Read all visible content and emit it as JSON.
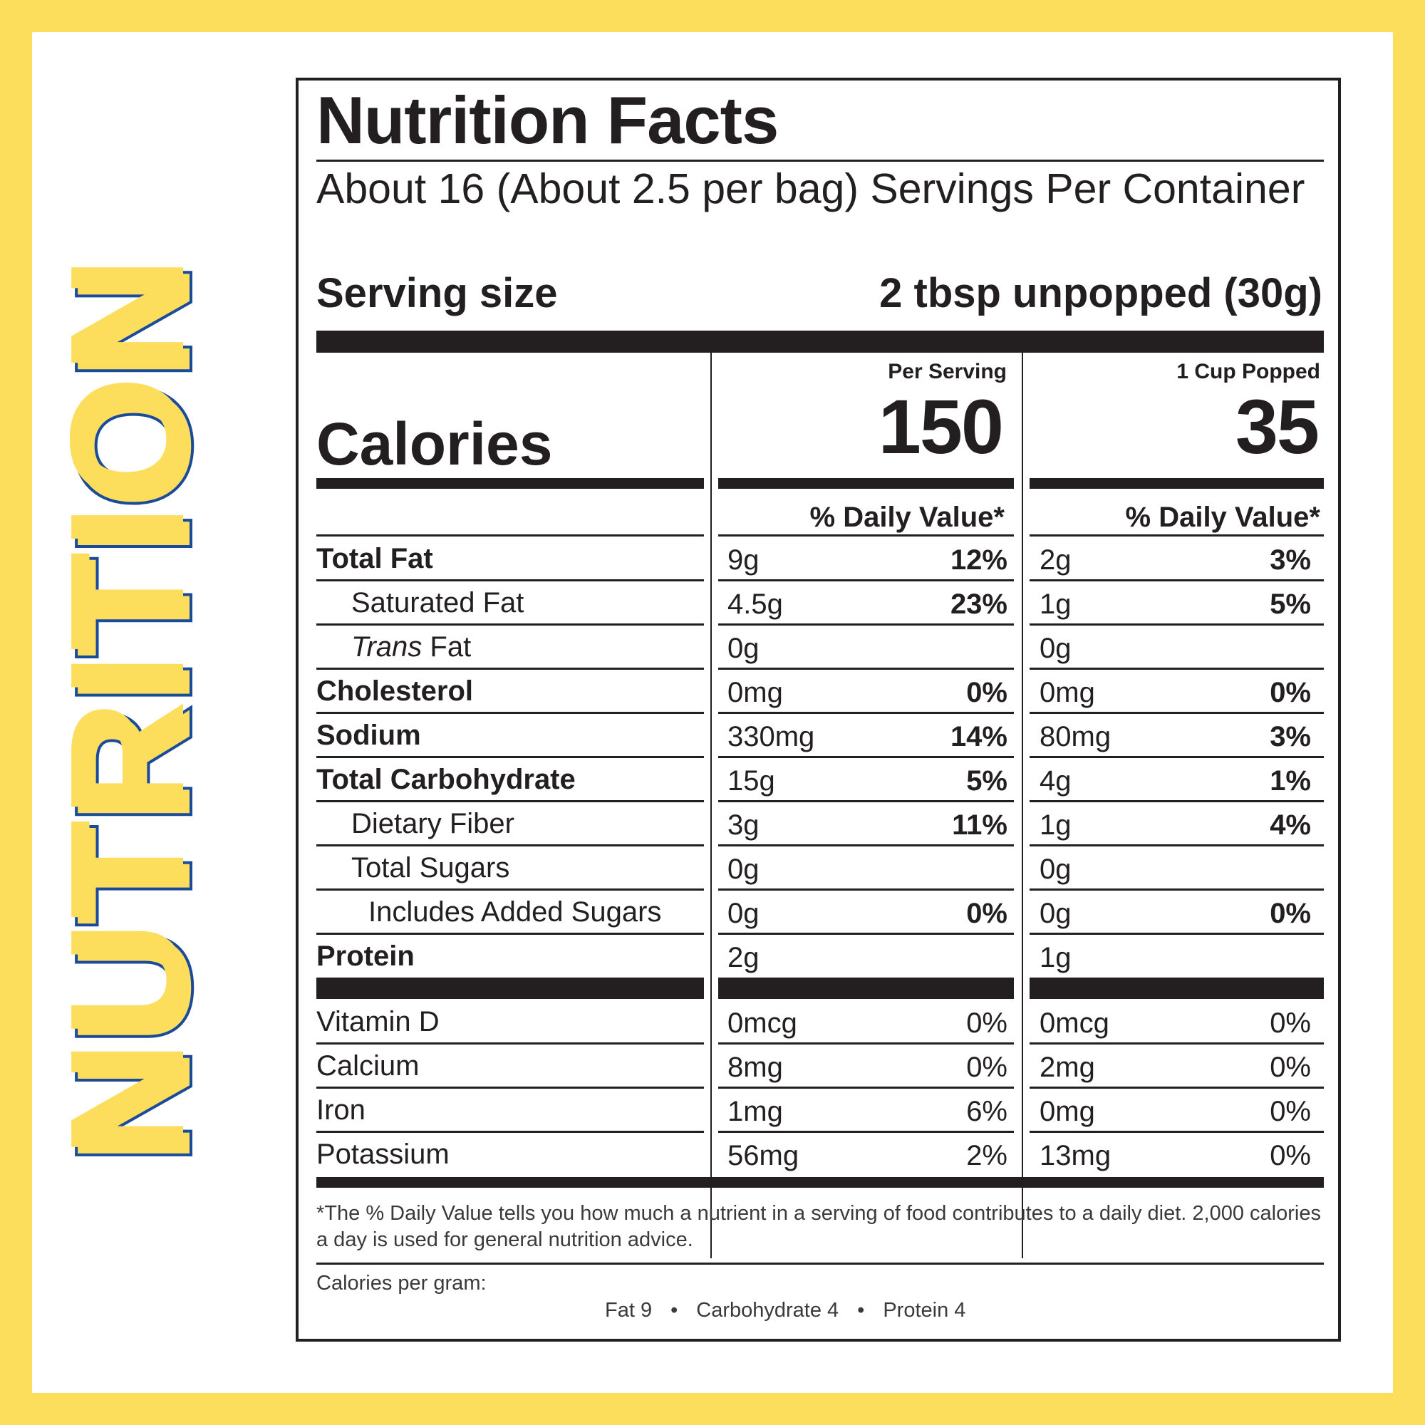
{
  "side_title": "NUTRITION",
  "panel": {
    "title": "Nutrition Facts",
    "servings_per_container": "About 16 (About 2.5 per bag) Servings Per Container",
    "serving_size_label": "Serving size",
    "serving_size_value": "2 tbsp unpopped (30g)",
    "calories_label": "Calories",
    "columns": [
      {
        "header": "Per Serving",
        "calories": "150",
        "dv_header": "% Daily Value*"
      },
      {
        "header": "1 Cup Popped",
        "calories": "35",
        "dv_header": "% Daily Value*"
      }
    ],
    "nutrients": [
      {
        "name": "Total Fat",
        "bold": true,
        "col1": {
          "amount": "9g",
          "dv": "12%"
        },
        "col2": {
          "amount": "2g",
          "dv": "3%"
        }
      },
      {
        "name": "Saturated Fat",
        "indent": 1,
        "col1": {
          "amount": "4.5g",
          "dv": "23%"
        },
        "col2": {
          "amount": "1g",
          "dv": "5%"
        }
      },
      {
        "name_italic": "Trans",
        "name": " Fat",
        "indent": 1,
        "col1": {
          "amount": "0g",
          "dv": ""
        },
        "col2": {
          "amount": "0g",
          "dv": ""
        }
      },
      {
        "name": "Cholesterol",
        "bold": true,
        "col1": {
          "amount": "0mg",
          "dv": "0%"
        },
        "col2": {
          "amount": "0mg",
          "dv": "0%"
        }
      },
      {
        "name": "Sodium",
        "bold": true,
        "col1": {
          "amount": "330mg",
          "dv": "14%"
        },
        "col2": {
          "amount": "80mg",
          "dv": "3%"
        }
      },
      {
        "name": "Total Carbohydrate",
        "bold": true,
        "col1": {
          "amount": "15g",
          "dv": "5%"
        },
        "col2": {
          "amount": "4g",
          "dv": "1%"
        }
      },
      {
        "name": "Dietary Fiber",
        "indent": 1,
        "col1": {
          "amount": "3g",
          "dv": "11%"
        },
        "col2": {
          "amount": "1g",
          "dv": "4%"
        }
      },
      {
        "name": "Total Sugars",
        "indent": 1,
        "col1": {
          "amount": "0g",
          "dv": ""
        },
        "col2": {
          "amount": "0g",
          "dv": ""
        }
      },
      {
        "name": "Includes Added Sugars",
        "indent": 2,
        "col1": {
          "amount": "0g",
          "dv": "0%"
        },
        "col2": {
          "amount": "0g",
          "dv": "0%"
        }
      },
      {
        "name": "Protein",
        "bold": true,
        "col1": {
          "amount": "2g",
          "dv": ""
        },
        "col2": {
          "amount": "1g",
          "dv": ""
        }
      }
    ],
    "vitamins": [
      {
        "name": "Vitamin D",
        "col1": {
          "amount": "0mcg",
          "dv": "0%"
        },
        "col2": {
          "amount": "0mcg",
          "dv": "0%"
        }
      },
      {
        "name": "Calcium",
        "col1": {
          "amount": "8mg",
          "dv": "0%"
        },
        "col2": {
          "amount": "2mg",
          "dv": "0%"
        }
      },
      {
        "name": "Iron",
        "col1": {
          "amount": "1mg",
          "dv": "6%"
        },
        "col2": {
          "amount": "0mg",
          "dv": "0%"
        }
      },
      {
        "name": "Potassium",
        "col1": {
          "amount": "56mg",
          "dv": "2%"
        },
        "col2": {
          "amount": "13mg",
          "dv": "0%"
        }
      }
    ],
    "footnote": "*The % Daily Value tells you how much a nutrient in a serving of food contributes to a daily diet. 2,000 calories a day is used for general nutrition advice.",
    "calories_per_gram_label": "Calories per gram:",
    "calories_per_gram": [
      "Fat 9",
      "Carbohydrate 4",
      "Protein 4"
    ]
  },
  "colors": {
    "border_yellow": "#FDDD5C",
    "title_blue": "#1a4a9a",
    "ink": "#231f20"
  }
}
